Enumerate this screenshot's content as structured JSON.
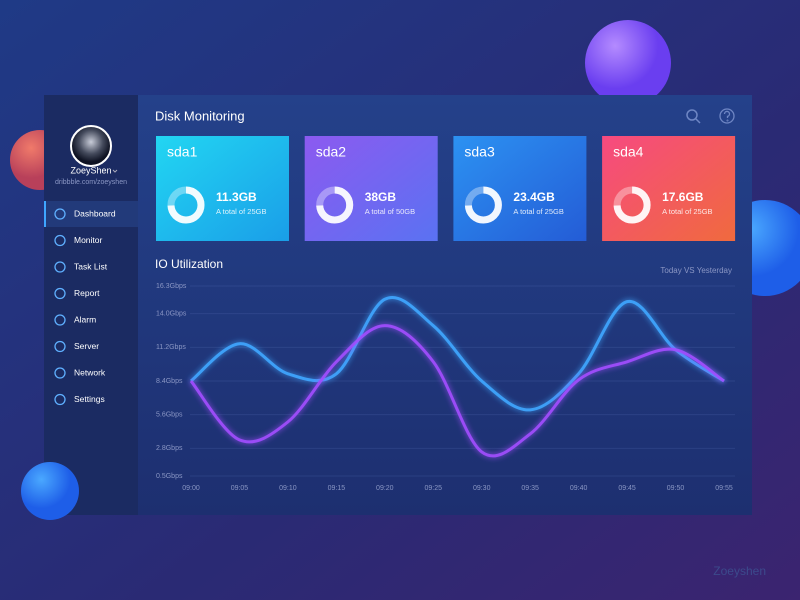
{
  "sidebar": {
    "user_name": "ZoeyShen",
    "user_url": "dribbble.com/zoeyshen",
    "nav": [
      "Dashboard",
      "Monitor",
      "Task List",
      "Report",
      "Alarm",
      "Server",
      "Network",
      "Settings"
    ]
  },
  "header": {
    "title": "Disk Monitoring"
  },
  "disks": [
    {
      "name": "sda1",
      "used": "11.3GB",
      "total": "A total of 25GB"
    },
    {
      "name": "sda2",
      "used": "38GB",
      "total": "A total of 50GB"
    },
    {
      "name": "sda3",
      "used": "23.4GB",
      "total": "A total of 25GB"
    },
    {
      "name": "sda4",
      "used": "17.6GB",
      "total": "A total of 25GB"
    }
  ],
  "chart_data": {
    "type": "line",
    "title": "IO Utilization",
    "subtitle": "Today VS Yesterday",
    "categories": [
      "09:00",
      "09:05",
      "09:10",
      "09:15",
      "09:20",
      "09:25",
      "09:30",
      "09:35",
      "09:40",
      "09:45",
      "09:50",
      "09:55"
    ],
    "series": [
      {
        "color": "#3fa6ff",
        "values": [
          8.4,
          11.5,
          9,
          9,
          15.2,
          13,
          8.4,
          6,
          9,
          15,
          11,
          8.4
        ]
      },
      {
        "color": "#a24dff",
        "values": [
          8.4,
          3.5,
          5,
          10,
          13,
          10,
          2.5,
          4,
          8.5,
          10,
          11,
          8.4
        ]
      }
    ],
    "ylim": [
      0.5,
      16.3
    ],
    "yticks": [
      {
        "value": 0.5,
        "label": "0.5Gbps"
      },
      {
        "value": 2.8,
        "label": "2.8Gbps"
      },
      {
        "value": 5.6,
        "label": "5.6Gbps"
      },
      {
        "value": 8.4,
        "label": "8.4Gbps"
      },
      {
        "value": 11.2,
        "label": "11.2Gbps"
      },
      {
        "value": 14.0,
        "label": "14.0Gbps"
      },
      {
        "value": 16.3,
        "label": "16.3Gbps"
      }
    ],
    "grid": true
  },
  "watermark": "Zoeyshen"
}
